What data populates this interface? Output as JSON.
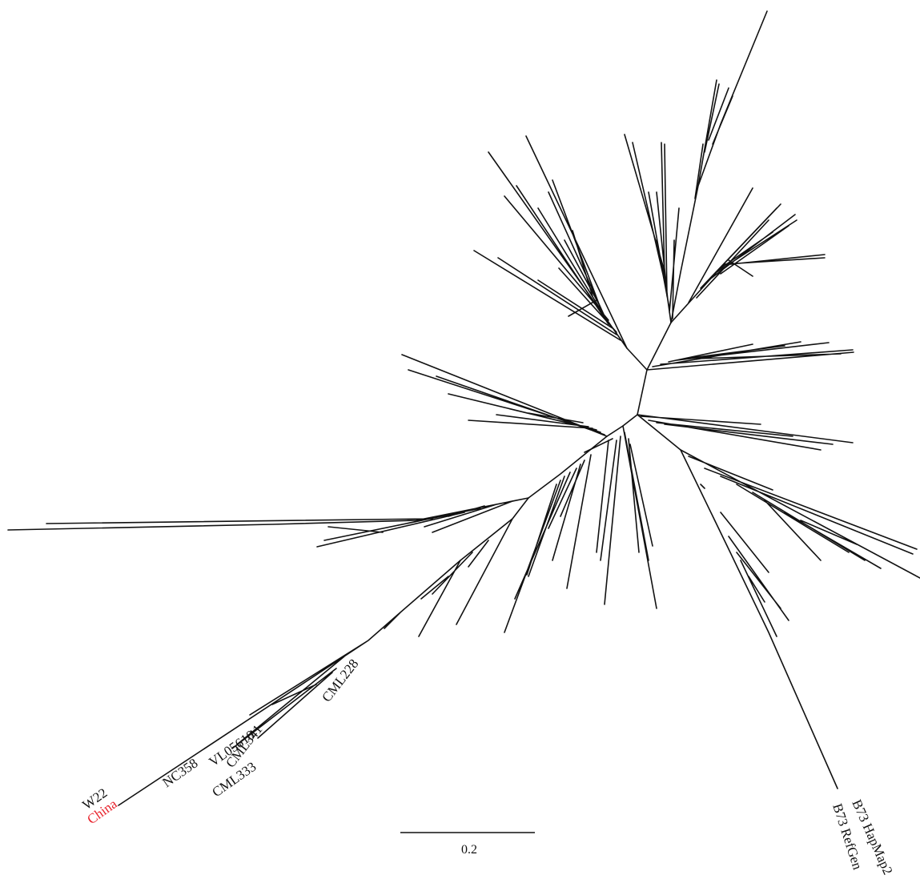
{
  "tree": {
    "labels": {
      "w22": "W22",
      "china": "China",
      "nc358": "NC358",
      "vl05610": "VL05610",
      "cml341": "CML341",
      "cml333": "CML333",
      "cml228": "CML228",
      "b73_hapmap2": "B73 HapMap2",
      "b73_refgen": "B73 RefGen"
    },
    "highlight_color": "#e8202a"
  },
  "scale_bar": {
    "label": "0.2"
  }
}
